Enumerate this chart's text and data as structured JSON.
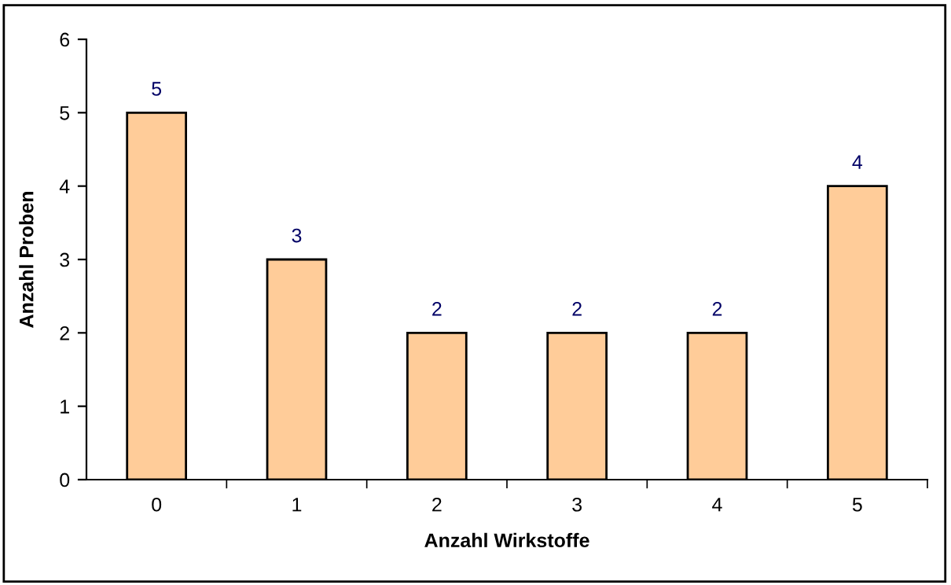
{
  "chart_data": {
    "type": "bar",
    "xlabel": "Anzahl Wirkstoffe",
    "ylabel": "Anzahl Proben",
    "categories": [
      "0",
      "1",
      "2",
      "3",
      "4",
      "5"
    ],
    "values": [
      5,
      3,
      2,
      2,
      2,
      4
    ],
    "color": "#ffcc99",
    "ylim": [
      0,
      6
    ],
    "yticks": [
      0,
      1,
      2,
      3,
      4,
      5,
      6
    ],
    "grid": false,
    "data_labels": true
  }
}
